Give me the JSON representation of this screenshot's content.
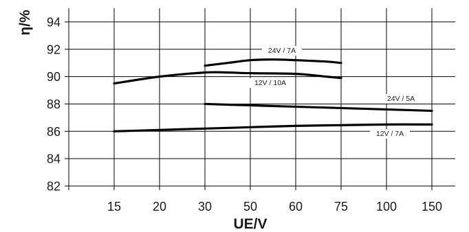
{
  "chart_data": {
    "type": "line",
    "ylabel": "η/%",
    "xlabel": "UE/V",
    "categories": [
      "15",
      "20",
      "30",
      "50",
      "60",
      "75",
      "100",
      "150"
    ],
    "yticks": [
      82,
      84,
      86,
      88,
      90,
      92,
      94
    ],
    "ylim": [
      82,
      95
    ],
    "grid": true,
    "series": [
      {
        "name": "24V / 7A",
        "x": [
          "30",
          "40",
          "50",
          "55",
          "60",
          "70",
          "75"
        ],
        "y": [
          90.8,
          91.0,
          91.2,
          91.25,
          91.2,
          91.1,
          91.0
        ]
      },
      {
        "name": "12V / 10A",
        "x": [
          "15",
          "20",
          "30",
          "40",
          "50",
          "60",
          "70",
          "75"
        ],
        "y": [
          89.5,
          90.0,
          90.3,
          90.3,
          90.25,
          90.2,
          90.0,
          89.9
        ]
      },
      {
        "name": "24V / 5A",
        "x": [
          "30",
          "50",
          "60",
          "75",
          "100",
          "150"
        ],
        "y": [
          88.0,
          87.9,
          87.8,
          87.7,
          87.6,
          87.5
        ]
      },
      {
        "name": "12V / 7A",
        "x": [
          "15",
          "30",
          "50",
          "60",
          "75",
          "100",
          "150"
        ],
        "y": [
          86.0,
          86.2,
          86.3,
          86.4,
          86.45,
          86.5,
          86.5
        ]
      }
    ]
  }
}
